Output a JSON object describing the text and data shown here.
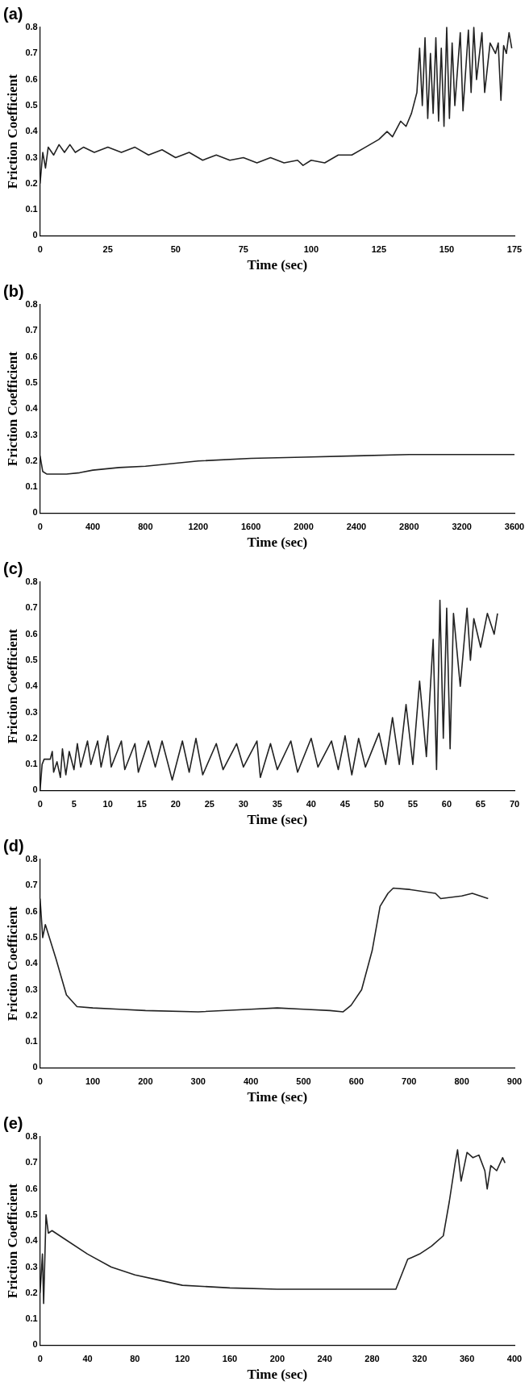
{
  "chart_data": [
    {
      "type": "line",
      "title": "(a)",
      "xlabel": "Time (sec)",
      "ylabel": "Friction Coefficient",
      "xlim": [
        0,
        175
      ],
      "xticks": [
        0,
        25,
        50,
        75,
        100,
        125,
        150,
        175
      ],
      "ylim": [
        0,
        0.8
      ],
      "yticks": [
        0,
        0.1,
        0.2,
        0.3,
        0.4,
        0.5,
        0.6,
        0.7,
        0.8
      ],
      "grid": false,
      "marker": "none",
      "line_style": "solid",
      "series": [
        {
          "color": "#222222",
          "x": [
            0,
            1,
            2,
            3,
            5,
            7,
            9,
            11,
            13,
            16,
            20,
            25,
            30,
            35,
            40,
            45,
            50,
            55,
            60,
            65,
            70,
            75,
            80,
            85,
            90,
            95,
            97,
            100,
            105,
            110,
            115,
            120,
            125,
            128,
            130,
            133,
            135,
            137,
            139,
            140,
            141,
            142,
            143,
            144,
            145,
            146,
            147,
            148,
            149,
            150,
            151,
            152,
            153,
            155,
            156,
            158,
            159,
            160,
            161,
            163,
            164,
            166,
            168,
            169,
            170,
            171,
            172,
            173,
            174
          ],
          "values": [
            0.2,
            0.32,
            0.26,
            0.34,
            0.31,
            0.35,
            0.32,
            0.35,
            0.32,
            0.34,
            0.32,
            0.34,
            0.32,
            0.34,
            0.31,
            0.33,
            0.3,
            0.32,
            0.29,
            0.31,
            0.29,
            0.3,
            0.28,
            0.3,
            0.28,
            0.29,
            0.27,
            0.29,
            0.28,
            0.31,
            0.31,
            0.34,
            0.37,
            0.4,
            0.38,
            0.44,
            0.42,
            0.47,
            0.55,
            0.72,
            0.5,
            0.76,
            0.45,
            0.7,
            0.47,
            0.76,
            0.44,
            0.72,
            0.42,
            0.8,
            0.45,
            0.74,
            0.5,
            0.78,
            0.48,
            0.79,
            0.55,
            0.8,
            0.6,
            0.78,
            0.55,
            0.74,
            0.7,
            0.74,
            0.52,
            0.73,
            0.7,
            0.78,
            0.72
          ]
        }
      ]
    },
    {
      "type": "line",
      "title": "(b)",
      "xlabel": "Time (sec)",
      "ylabel": "Friction Coefficient",
      "xlim": [
        0,
        3600
      ],
      "xticks": [
        0,
        400,
        800,
        1200,
        1600,
        2000,
        2400,
        2800,
        3200,
        3600
      ],
      "ylim": [
        0,
        0.8
      ],
      "yticks": [
        0,
        0.1,
        0.2,
        0.3,
        0.4,
        0.5,
        0.6,
        0.7,
        0.8
      ],
      "grid": false,
      "marker": "none",
      "line_style": "solid",
      "series": [
        {
          "color": "#222222",
          "x": [
            0,
            20,
            50,
            200,
            300,
            400,
            600,
            800,
            1200,
            1600,
            2000,
            2400,
            2800,
            3200,
            3600
          ],
          "values": [
            0.22,
            0.16,
            0.15,
            0.15,
            0.155,
            0.165,
            0.175,
            0.18,
            0.2,
            0.21,
            0.215,
            0.22,
            0.225,
            0.225,
            0.225
          ]
        }
      ]
    },
    {
      "type": "line",
      "title": "(c)",
      "xlabel": "Time (sec)",
      "ylabel": "Friction Coefficient",
      "xlim": [
        0,
        70
      ],
      "xticks": [
        0,
        5,
        10,
        15,
        20,
        25,
        30,
        35,
        40,
        45,
        50,
        55,
        60,
        65,
        70
      ],
      "ylim": [
        0,
        0.8
      ],
      "yticks": [
        0,
        0.1,
        0.2,
        0.3,
        0.4,
        0.5,
        0.6,
        0.7,
        0.8
      ],
      "grid": false,
      "marker": "none",
      "line_style": "solid",
      "series": [
        {
          "color": "#222222",
          "x": [
            0,
            0.3,
            0.6,
            1.5,
            1.8,
            2,
            2.5,
            3,
            3.3,
            3.8,
            4.3,
            5,
            5.5,
            6,
            7,
            7.5,
            8.5,
            9,
            10,
            10.5,
            12,
            12.5,
            14,
            14.5,
            16,
            17,
            18,
            19.5,
            21,
            22,
            23,
            24,
            26,
            27,
            29,
            30,
            32,
            32.5,
            34,
            35,
            37,
            38,
            40,
            41,
            43,
            44,
            45,
            46,
            47,
            48,
            50,
            51,
            52,
            53,
            54,
            55,
            56,
            57,
            58,
            58.5,
            59,
            59.5,
            60,
            60.5,
            61,
            62,
            63,
            63.5,
            64,
            65,
            66,
            67,
            67.5
          ],
          "values": [
            0,
            0.1,
            0.12,
            0.12,
            0.15,
            0.07,
            0.11,
            0.05,
            0.16,
            0.06,
            0.15,
            0.08,
            0.18,
            0.09,
            0.19,
            0.1,
            0.19,
            0.09,
            0.21,
            0.09,
            0.19,
            0.08,
            0.18,
            0.07,
            0.19,
            0.09,
            0.19,
            0.04,
            0.19,
            0.07,
            0.2,
            0.06,
            0.18,
            0.08,
            0.18,
            0.09,
            0.19,
            0.05,
            0.18,
            0.08,
            0.19,
            0.07,
            0.2,
            0.09,
            0.19,
            0.08,
            0.21,
            0.06,
            0.2,
            0.09,
            0.22,
            0.1,
            0.28,
            0.1,
            0.33,
            0.1,
            0.42,
            0.13,
            0.58,
            0.08,
            0.73,
            0.2,
            0.7,
            0.16,
            0.68,
            0.4,
            0.7,
            0.5,
            0.66,
            0.55,
            0.68,
            0.6,
            0.68
          ]
        }
      ]
    },
    {
      "type": "line",
      "title": "(d)",
      "xlabel": "Time (sec)",
      "ylabel": "Friction Coefficient",
      "xlim": [
        0,
        900
      ],
      "xticks": [
        0,
        100,
        200,
        300,
        400,
        500,
        600,
        700,
        800,
        900
      ],
      "ylim": [
        0,
        0.8
      ],
      "yticks": [
        0,
        0.1,
        0.2,
        0.3,
        0.4,
        0.5,
        0.6,
        0.7,
        0.8
      ],
      "grid": false,
      "marker": "none",
      "line_style": "solid",
      "series": [
        {
          "color": "#222222",
          "x": [
            0,
            5,
            10,
            30,
            50,
            70,
            100,
            150,
            200,
            300,
            400,
            450,
            500,
            550,
            575,
            590,
            610,
            630,
            645,
            660,
            670,
            700,
            750,
            760,
            800,
            820,
            850
          ],
          "values": [
            0.65,
            0.5,
            0.55,
            0.42,
            0.28,
            0.235,
            0.23,
            0.225,
            0.22,
            0.215,
            0.225,
            0.23,
            0.225,
            0.22,
            0.215,
            0.24,
            0.3,
            0.45,
            0.62,
            0.67,
            0.69,
            0.685,
            0.67,
            0.65,
            0.66,
            0.67,
            0.65
          ]
        }
      ]
    },
    {
      "type": "line",
      "title": "(e)",
      "xlabel": "Time (sec)",
      "ylabel": "Friction Coefficient",
      "xlim": [
        0,
        400
      ],
      "xticks": [
        0,
        40,
        80,
        120,
        160,
        200,
        240,
        280,
        320,
        360,
        400
      ],
      "ylim": [
        0,
        0.8
      ],
      "yticks": [
        0,
        0.1,
        0.2,
        0.3,
        0.4,
        0.5,
        0.6,
        0.7,
        0.8
      ],
      "grid": false,
      "marker": "none",
      "line_style": "solid",
      "series": [
        {
          "color": "#222222",
          "x": [
            0,
            2,
            3,
            5,
            7,
            10,
            20,
            40,
            60,
            80,
            100,
            120,
            160,
            200,
            240,
            280,
            300,
            310,
            320,
            330,
            340,
            345,
            350,
            352,
            355,
            360,
            365,
            370,
            375,
            377,
            380,
            385,
            390,
            392
          ],
          "values": [
            0.2,
            0.35,
            0.16,
            0.5,
            0.43,
            0.44,
            0.41,
            0.35,
            0.3,
            0.27,
            0.25,
            0.23,
            0.22,
            0.215,
            0.215,
            0.215,
            0.215,
            0.33,
            0.35,
            0.38,
            0.42,
            0.55,
            0.7,
            0.75,
            0.63,
            0.74,
            0.72,
            0.73,
            0.67,
            0.6,
            0.69,
            0.67,
            0.72,
            0.7
          ]
        }
      ]
    }
  ]
}
